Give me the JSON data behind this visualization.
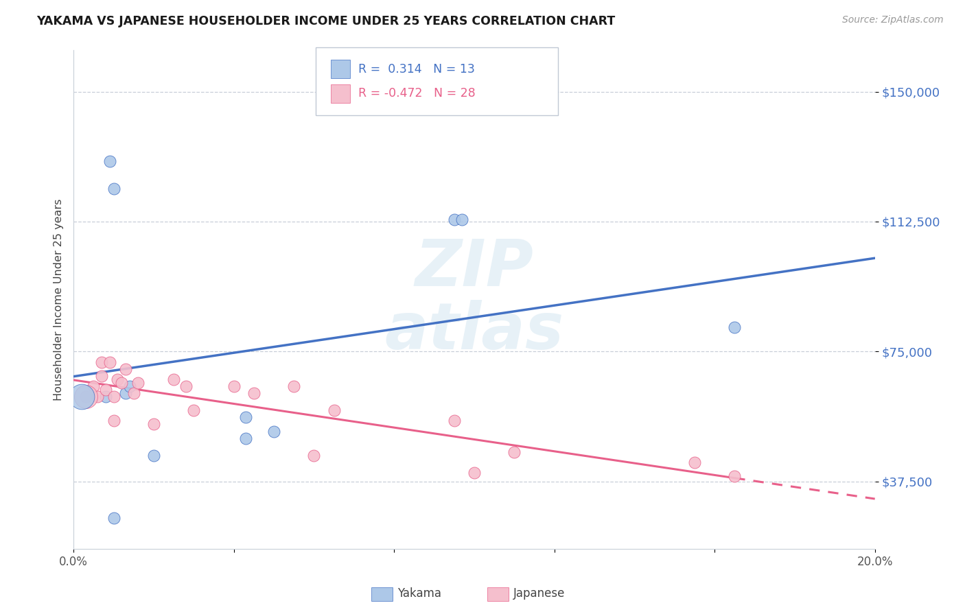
{
  "title": "YAKAMA VS JAPANESE HOUSEHOLDER INCOME UNDER 25 YEARS CORRELATION CHART",
  "source": "Source: ZipAtlas.com",
  "ylabel": "Householder Income Under 25 years",
  "ytick_labels": [
    "$37,500",
    "$75,000",
    "$112,500",
    "$150,000"
  ],
  "ytick_values": [
    37500,
    75000,
    112500,
    150000
  ],
  "xmin": 0.0,
  "xmax": 0.2,
  "ymin": 18000,
  "ymax": 162000,
  "yakama_R": 0.314,
  "yakama_N": 13,
  "japanese_R": -0.472,
  "japanese_N": 28,
  "yakama_color": "#adc8e8",
  "japanese_color": "#f5bfcd",
  "yakama_line_color": "#4472c4",
  "japanese_line_color": "#e8608a",
  "yakama_x": [
    0.008,
    0.009,
    0.01,
    0.013,
    0.014,
    0.02,
    0.043,
    0.043,
    0.05,
    0.095,
    0.097,
    0.165,
    0.01
  ],
  "yakama_y": [
    62000,
    130000,
    122000,
    63000,
    65000,
    45000,
    56000,
    50000,
    52000,
    113000,
    113000,
    82000,
    27000
  ],
  "japanese_x": [
    0.003,
    0.005,
    0.006,
    0.007,
    0.007,
    0.008,
    0.009,
    0.01,
    0.01,
    0.011,
    0.012,
    0.013,
    0.015,
    0.016,
    0.02,
    0.025,
    0.028,
    0.03,
    0.04,
    0.045,
    0.055,
    0.06,
    0.065,
    0.095,
    0.1,
    0.11,
    0.155,
    0.165
  ],
  "japanese_y": [
    62000,
    65000,
    62000,
    72000,
    68000,
    64000,
    72000,
    62000,
    55000,
    67000,
    66000,
    70000,
    63000,
    66000,
    54000,
    67000,
    65000,
    58000,
    65000,
    63000,
    65000,
    45000,
    58000,
    55000,
    40000,
    46000,
    43000,
    39000
  ],
  "xtick_positions": [
    0.0,
    0.04,
    0.08,
    0.12,
    0.16,
    0.2
  ],
  "xtick_labels": [
    "0.0%",
    "",
    "",
    "",
    "",
    "20.0%"
  ]
}
